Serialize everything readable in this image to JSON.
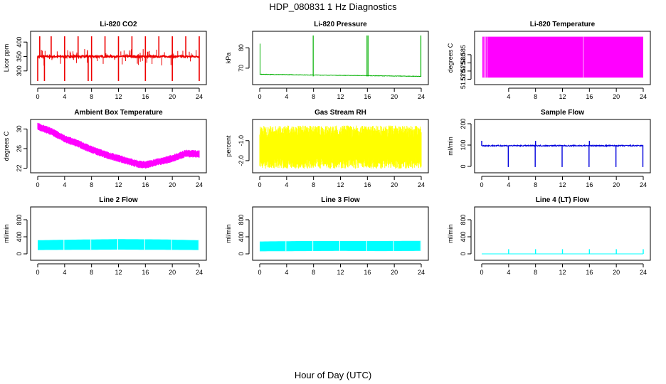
{
  "figure": {
    "title": "HDP_080831  1 Hz Diagnostics",
    "xlabel": "Hour of Day (UTC)"
  },
  "colors": {
    "red": "#ee0000",
    "green": "#00b000",
    "magenta": "#ff00ff",
    "yellow": "#ffff00",
    "blue": "#0000dd",
    "cyan": "#00ffff",
    "axis": "#000000"
  },
  "chart_data": [
    {
      "type": "line",
      "title": "Li-820 CO2",
      "ylabel": "Licor ppm",
      "xlim": [
        0,
        24
      ],
      "ylim": [
        260,
        430
      ],
      "xticks": [
        0,
        4,
        8,
        12,
        16,
        20,
        24
      ],
      "xtick_labels": [
        "0",
        "4",
        "8",
        "12",
        "16",
        "20",
        "24"
      ],
      "yticks": [
        300,
        350,
        400
      ],
      "ytick_labels": [
        "300",
        "350",
        "400"
      ],
      "color": "red",
      "series": [
        {
          "name": "CO2",
          "baseline": 350,
          "spikes_up": [
            0.3,
            2,
            4,
            6,
            8,
            10,
            12,
            14,
            16,
            18,
            20,
            22,
            24
          ],
          "spikes_down": [
            0,
            1,
            4,
            7.5,
            8,
            12,
            16,
            20,
            24
          ],
          "noise_low": 320,
          "noise_high": 375,
          "spike_high": 420,
          "dip_low": 265
        }
      ]
    },
    {
      "type": "line",
      "title": "Li-820 Pressure",
      "ylabel": "kPa",
      "xlim": [
        0,
        24
      ],
      "ylim": [
        63,
        87
      ],
      "xticks": [
        0,
        4,
        8,
        12,
        16,
        20,
        24
      ],
      "xtick_labels": [
        "0",
        "4",
        "8",
        "12",
        "16",
        "20",
        "24"
      ],
      "yticks": [
        70,
        80
      ],
      "ytick_labels": [
        "70",
        "80"
      ],
      "color": "green",
      "series": [
        {
          "name": "Pressure",
          "start": 67,
          "end": 66,
          "spikes": [
            0,
            8,
            16,
            24
          ],
          "spike_high": 86
        }
      ]
    },
    {
      "type": "area",
      "title": "Li-820 Temperature",
      "ylabel": "degrees C",
      "xlim": [
        0,
        24
      ],
      "ylim": [
        51.568,
        51.598
      ],
      "xticks": [
        4,
        8,
        12,
        16,
        20,
        24
      ],
      "xtick_labels": [
        "4",
        "8",
        "12",
        "16",
        "20",
        "24"
      ],
      "yticks": [
        51.57,
        51.575,
        51.58,
        51.585
      ],
      "ytick_labels": [
        "51.570",
        "51.575",
        "51.580",
        "51.585"
      ],
      "color": "magenta",
      "series": [
        {
          "name": "Temperature",
          "low": 51.571,
          "high": 51.596,
          "x_start": 0.1,
          "x_end": 24
        }
      ]
    },
    {
      "type": "line",
      "title": "Ambient Box Temperature",
      "ylabel": "degrees C",
      "xlim": [
        0,
        24
      ],
      "ylim": [
        21.5,
        31.5
      ],
      "xticks": [
        0,
        4,
        8,
        12,
        16,
        20,
        24
      ],
      "xtick_labels": [
        "0",
        "4",
        "8",
        "12",
        "16",
        "20",
        "24"
      ],
      "yticks": [
        22,
        26,
        30
      ],
      "ytick_labels": [
        "22",
        "26",
        "30"
      ],
      "color": "magenta",
      "series": [
        {
          "name": "Box Temp",
          "x": [
            0,
            2,
            4,
            6,
            8,
            10,
            12,
            14,
            15,
            16,
            18,
            20,
            22,
            24
          ],
          "y": [
            30.5,
            29.5,
            28,
            27,
            25.8,
            24.8,
            24,
            23.2,
            22.8,
            22.7,
            23.3,
            24,
            25,
            24.9
          ],
          "band": 0.7
        }
      ]
    },
    {
      "type": "area",
      "title": "Gas Stream RH",
      "ylabel": "percent",
      "xlim": [
        0,
        24
      ],
      "ylim": [
        -2.5,
        -0.05
      ],
      "xticks": [
        0,
        4,
        8,
        12,
        16,
        20,
        24
      ],
      "xtick_labels": [
        "0",
        "4",
        "8",
        "12",
        "16",
        "20",
        "24"
      ],
      "yticks": [
        -2.0,
        -1.0
      ],
      "ytick_labels": [
        "-2.0",
        "-1.0"
      ],
      "color": "yellow",
      "series": [
        {
          "name": "RH",
          "center": -1.3,
          "low": -2.4,
          "high": -0.25
        }
      ]
    },
    {
      "type": "line",
      "title": "Sample Flow",
      "ylabel": "ml/min",
      "xlim": [
        0,
        24
      ],
      "ylim": [
        -20,
        210
      ],
      "xticks": [
        0,
        4,
        8,
        12,
        16,
        20,
        24
      ],
      "xtick_labels": [
        "0",
        "4",
        "8",
        "12",
        "16",
        "20",
        "24"
      ],
      "yticks": [
        0,
        100,
        200
      ],
      "ytick_labels": [
        "0",
        "100",
        "200"
      ],
      "color": "blue",
      "series": [
        {
          "name": "Sample Flow",
          "baseline": 97,
          "dips": [
            4,
            8,
            12,
            16,
            20,
            24
          ],
          "dip_low": -3,
          "spikes": [
            0,
            8,
            16
          ],
          "spike_high": 120
        }
      ]
    },
    {
      "type": "area",
      "title": "Line 2 Flow",
      "ylabel": "ml/min",
      "xlim": [
        0,
        24
      ],
      "ylim": [
        -100,
        1050
      ],
      "xticks": [
        0,
        4,
        8,
        12,
        16,
        20,
        24
      ],
      "xtick_labels": [
        "0",
        "4",
        "8",
        "12",
        "16",
        "20",
        "24"
      ],
      "yticks": [
        0,
        400,
        800
      ],
      "ytick_labels": [
        "0",
        "400",
        "800"
      ],
      "color": "cyan",
      "series": [
        {
          "name": "Line 2 Flow",
          "x": [
            0,
            6,
            12,
            18,
            24
          ],
          "low": [
            90,
            95,
            100,
            95,
            90
          ],
          "high": [
            320,
            335,
            345,
            340,
            320
          ],
          "gaps": [
            4,
            8,
            12,
            16,
            20,
            24
          ]
        }
      ]
    },
    {
      "type": "area",
      "title": "Line 3 Flow",
      "ylabel": "ml/min",
      "xlim": [
        0,
        24
      ],
      "ylim": [
        -100,
        1050
      ],
      "xticks": [
        0,
        4,
        8,
        12,
        16,
        20,
        24
      ],
      "xtick_labels": [
        "0",
        "4",
        "8",
        "12",
        "16",
        "20",
        "24"
      ],
      "yticks": [
        0,
        400,
        800
      ],
      "ytick_labels": [
        "0",
        "400",
        "800"
      ],
      "color": "cyan",
      "series": [
        {
          "name": "Line 3 Flow",
          "x": [
            0,
            6,
            12,
            18,
            24
          ],
          "low": [
            60,
            65,
            70,
            65,
            70
          ],
          "high": [
            290,
            300,
            300,
            300,
            305
          ],
          "gaps": [
            4,
            8,
            12,
            16,
            20,
            24
          ]
        }
      ]
    },
    {
      "type": "line",
      "title": "Line 4 (LT) Flow",
      "ylabel": "ml/min",
      "xlim": [
        0,
        24
      ],
      "ylim": [
        -100,
        1050
      ],
      "xticks": [
        0,
        4,
        8,
        12,
        16,
        20,
        24
      ],
      "xtick_labels": [
        "0",
        "4",
        "8",
        "12",
        "16",
        "20",
        "24"
      ],
      "yticks": [
        0,
        400,
        800
      ],
      "ytick_labels": [
        "0",
        "400",
        "800"
      ],
      "color": "cyan",
      "series": [
        {
          "name": "Line 4 Flow",
          "baseline": 0,
          "spikes": [
            4,
            8,
            12,
            16,
            20,
            24
          ],
          "spike_high": 110
        }
      ]
    }
  ]
}
